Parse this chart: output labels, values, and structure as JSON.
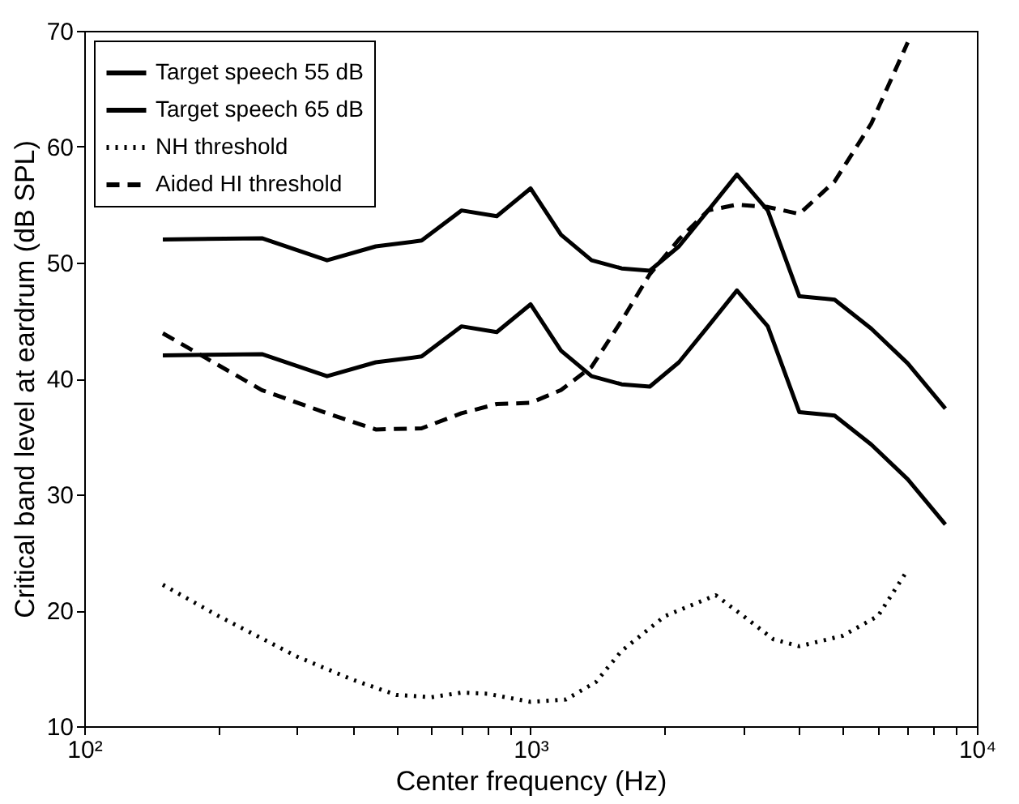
{
  "chart_data": {
    "type": "line",
    "xlabel": "Center frequency (Hz)",
    "ylabel": "Critical band level at eardrum (dB SPL)",
    "log": "x",
    "grid": false,
    "legend": "top left",
    "xlim": [
      100,
      10000
    ],
    "ylim": [
      10,
      70
    ],
    "xticks": [
      {
        "value": 100,
        "label": "10²"
      },
      {
        "value": 200,
        "label": null
      },
      {
        "value": 300,
        "label": null
      },
      {
        "value": 400,
        "label": null
      },
      {
        "value": 500,
        "label": null
      },
      {
        "value": 600,
        "label": null
      },
      {
        "value": 700,
        "label": null
      },
      {
        "value": 800,
        "label": null
      },
      {
        "value": 900,
        "label": null
      },
      {
        "value": 1000,
        "label": "10³"
      },
      {
        "value": 2000,
        "label": null
      },
      {
        "value": 3000,
        "label": null
      },
      {
        "value": 4000,
        "label": null
      },
      {
        "value": 5000,
        "label": null
      },
      {
        "value": 6000,
        "label": null
      },
      {
        "value": 7000,
        "label": null
      },
      {
        "value": 8000,
        "label": null
      },
      {
        "value": 9000,
        "label": null
      },
      {
        "value": 10000,
        "label": "10⁴"
      }
    ],
    "yticks": [
      10,
      20,
      30,
      40,
      50,
      60,
      70
    ],
    "series": [
      {
        "name": "Target speech 55 dB",
        "color": "#000000",
        "line_style": "solid",
        "x": [
          150,
          250,
          350,
          450,
          570,
          700,
          840,
          1000,
          1170,
          1370,
          1600,
          1850,
          2150,
          2500,
          2900,
          3400,
          4000,
          4800,
          5800,
          7000,
          8500
        ],
        "values": [
          42,
          42.1,
          40.2,
          41.4,
          41.9,
          44.5,
          44,
          46.4,
          42.4,
          40.2,
          39.5,
          39.3,
          41.4,
          44.5,
          47.6,
          44.5,
          37.1,
          36.8,
          34.3,
          31.3,
          27.4
        ]
      },
      {
        "name": "Target speech 65 dB",
        "color": "#000000",
        "line_style": "solid",
        "x": [
          150,
          250,
          350,
          450,
          570,
          700,
          840,
          1000,
          1170,
          1370,
          1600,
          1850,
          2150,
          2500,
          2900,
          3400,
          4000,
          4800,
          5800,
          7000,
          8500
        ],
        "values": [
          52,
          52.1,
          50.2,
          51.4,
          51.9,
          54.5,
          54,
          56.4,
          52.4,
          50.2,
          49.5,
          49.3,
          51.4,
          54.5,
          57.6,
          54.5,
          47.1,
          46.8,
          44.3,
          41.3,
          37.4
        ]
      },
      {
        "name": "NH threshold",
        "color": "#000000",
        "line_style": "dotted",
        "x": [
          150,
          200,
          300,
          400,
          500,
          600,
          700,
          800,
          1000,
          1200,
          1400,
          1600,
          2000,
          2600,
          3000,
          3500,
          4000,
          5000,
          6000,
          7000
        ],
        "values": [
          22.2,
          19.5,
          16,
          14,
          12.7,
          12.5,
          12.9,
          12.8,
          12.1,
          12.3,
          13.8,
          16.5,
          19.5,
          21.3,
          19.5,
          17.5,
          16.9,
          17.8,
          19.5,
          23.5
        ]
      },
      {
        "name": "Aided HI threshold",
        "color": "#000000",
        "line_style": "dashed",
        "x": [
          150,
          250,
          350,
          450,
          570,
          700,
          840,
          1000,
          1170,
          1370,
          1600,
          1850,
          2150,
          2500,
          2900,
          3400,
          4000,
          4800,
          5800,
          7000
        ],
        "values": [
          43.9,
          39,
          37,
          35.6,
          35.7,
          37,
          37.8,
          37.9,
          39,
          41,
          45,
          49,
          52,
          54.5,
          55,
          54.8,
          54.2,
          57,
          62,
          69
        ]
      }
    ]
  }
}
